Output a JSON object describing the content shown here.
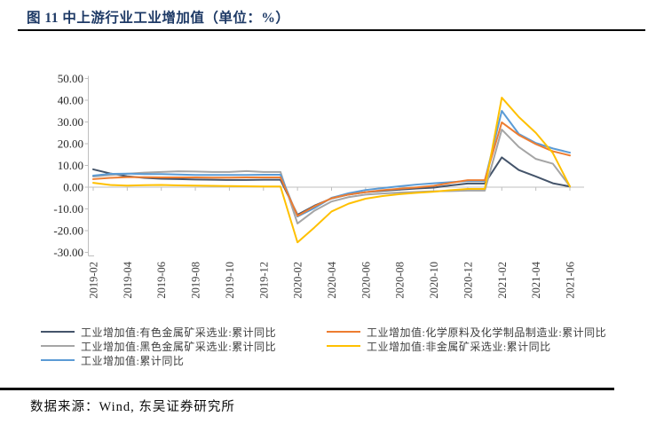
{
  "header": {
    "figure_title": "图 11 中上游行业工业增加值（单位：%）"
  },
  "footer": {
    "source": "数据来源：Wind, 东吴证券研究所"
  },
  "chart_data": {
    "type": "line",
    "title": "图 11 中上游行业工业增加值",
    "unit": "%",
    "grid": false,
    "legend_position": "bottom",
    "ylim": [
      -30,
      50
    ],
    "y_ticks": [
      50,
      40,
      30,
      20,
      10,
      0,
      -10,
      -20,
      -30
    ],
    "x": [
      "2019-02",
      "2019-03",
      "2019-04",
      "2019-05",
      "2019-06",
      "2019-07",
      "2019-08",
      "2019-09",
      "2019-10",
      "2019-11",
      "2019-12",
      "2020-02",
      "2020-03",
      "2020-04",
      "2020-05",
      "2020-06",
      "2020-07",
      "2020-08",
      "2020-09",
      "2020-10",
      "2020-11",
      "2020-12",
      "2021-02",
      "2021-03",
      "2021-04",
      "2021-05",
      "2021-06"
    ],
    "x_tick_labels": [
      "2019-02",
      "2019-04",
      "2019-06",
      "2019-08",
      "2019-10",
      "2019-12",
      "2020-02",
      "2020-04",
      "2020-06",
      "2020-08",
      "2020-10",
      "2020-12",
      "2021-02",
      "2021-04",
      "2021-06"
    ],
    "series": [
      {
        "name": "工业增加值:有色金属矿采选业:累计同比",
        "color": "#44546A",
        "values": [
          8.2,
          6.3,
          5.0,
          4.3,
          3.9,
          3.7,
          3.5,
          3.4,
          3.3,
          3.3,
          3.4,
          -12.7,
          -8.5,
          -5.2,
          -3.4,
          -2.3,
          -1.7,
          -1.1,
          -0.6,
          -0.2,
          0.8,
          1.7,
          13.7,
          7.9,
          4.9,
          1.8,
          0.3
        ]
      },
      {
        "name": "工业增加值:黑色金属矿采选业:累计同比",
        "color": "#A5A5A5",
        "values": [
          4.9,
          5.6,
          6.2,
          6.7,
          7.0,
          7.3,
          7.2,
          7.0,
          7.0,
          7.4,
          7.0,
          -16.7,
          -10.8,
          -6.6,
          -4.6,
          -3.4,
          -2.9,
          -2.5,
          -2.2,
          -1.9,
          -1.8,
          -1.6,
          26.5,
          18.5,
          13.0,
          10.8,
          0.4
        ]
      },
      {
        "name": "工业增加值:累计同比",
        "color": "#5B9BD5",
        "values": [
          5.3,
          6.1,
          6.2,
          6.0,
          6.0,
          5.8,
          5.6,
          5.6,
          5.6,
          5.6,
          5.7,
          -13.5,
          -9.6,
          -4.9,
          -2.8,
          -1.3,
          -0.4,
          0.4,
          1.2,
          1.8,
          2.3,
          2.8,
          35.1,
          24.5,
          20.3,
          17.8,
          15.9
        ]
      },
      {
        "name": "工业增加值:化学原料及化学制品制造业:累计同比",
        "color": "#ED7D31",
        "values": [
          3.7,
          4.3,
          4.6,
          4.6,
          4.5,
          4.5,
          4.5,
          4.4,
          4.4,
          4.5,
          4.5,
          -13.2,
          -8.8,
          -5.1,
          -3.4,
          -2.3,
          -1.4,
          -0.7,
          -0.1,
          0.6,
          2.0,
          3.2,
          29.8,
          24.0,
          19.8,
          16.5,
          14.6
        ]
      },
      {
        "name": "工业增加值:非金属矿采选业:累计同比",
        "color": "#FFC000",
        "values": [
          2.0,
          1.0,
          0.7,
          0.9,
          1.0,
          0.8,
          0.7,
          0.6,
          0.5,
          0.4,
          0.3,
          -25.4,
          -18.5,
          -11.2,
          -7.6,
          -5.3,
          -4.1,
          -3.2,
          -2.6,
          -2.1,
          -1.4,
          -0.8,
          41.2,
          32.3,
          25.0,
          15.7,
          0.3
        ]
      }
    ],
    "legend_columns": [
      [
        0,
        1,
        2
      ],
      [
        3,
        4
      ]
    ],
    "axis_color": "#BFBFBF",
    "tick_label_color": "#404040"
  }
}
